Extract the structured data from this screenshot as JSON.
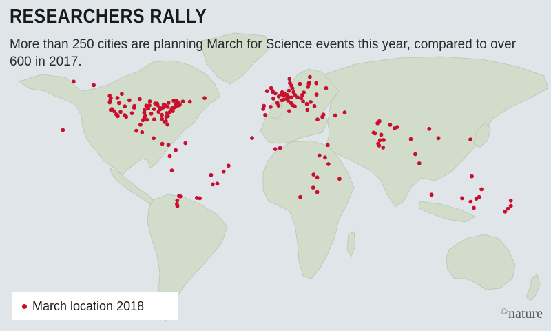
{
  "header": {
    "title": "RESEARCHERS RALLY",
    "subtitle": "More than 250 cities are planning March for Science events this year, compared to over 600 in 2017."
  },
  "legend": {
    "label": "March location 2018"
  },
  "credit": {
    "symbol": "©",
    "text": "nature"
  },
  "colors": {
    "water": "#dfe5e8",
    "land": "#d2dccb",
    "border": "#b9c4b3",
    "marker": "#c8102e"
  },
  "markers": [
    [
      -122.4,
      37.8
    ],
    [
      -118.2,
      34.1
    ],
    [
      -117.2,
      32.7
    ],
    [
      -122.7,
      45.5
    ],
    [
      -122.3,
      47.6
    ],
    [
      -121.5,
      38.6
    ],
    [
      -119.8,
      36.7
    ],
    [
      -117.4,
      47.7
    ],
    [
      -123.1,
      44.0
    ],
    [
      -116.2,
      43.6
    ],
    [
      -112.1,
      33.5
    ],
    [
      -110.9,
      32.2
    ],
    [
      -106.6,
      35.1
    ],
    [
      -105.0,
      39.7
    ],
    [
      -111.9,
      40.8
    ],
    [
      -115.1,
      36.2
    ],
    [
      -104.8,
      41.1
    ],
    [
      -108.5,
      45.8
    ],
    [
      -96.8,
      32.8
    ],
    [
      -97.7,
      30.3
    ],
    [
      -95.4,
      29.8
    ],
    [
      -98.5,
      29.4
    ],
    [
      -90.1,
      30.0
    ],
    [
      -87.6,
      41.9
    ],
    [
      -93.3,
      44.9
    ],
    [
      -90.2,
      38.6
    ],
    [
      -94.6,
      39.1
    ],
    [
      -96.0,
      41.3
    ],
    [
      -86.8,
      36.2
    ],
    [
      -84.4,
      33.7
    ],
    [
      -80.2,
      25.8
    ],
    [
      -81.4,
      28.5
    ],
    [
      -82.5,
      27.9
    ],
    [
      -84.3,
      30.4
    ],
    [
      -80.8,
      35.2
    ],
    [
      -78.6,
      35.8
    ],
    [
      -77.0,
      38.9
    ],
    [
      -76.6,
      39.3
    ],
    [
      -75.2,
      39.9
    ],
    [
      -74.0,
      40.7
    ],
    [
      -71.1,
      42.4
    ],
    [
      -73.8,
      42.7
    ],
    [
      -72.9,
      41.3
    ],
    [
      -83.0,
      42.3
    ],
    [
      -81.7,
      41.5
    ],
    [
      -80.0,
      40.4
    ],
    [
      -84.5,
      39.1
    ],
    [
      -86.2,
      39.8
    ],
    [
      -83.0,
      40.0
    ],
    [
      -89.4,
      43.1
    ],
    [
      -87.9,
      43.0
    ],
    [
      -85.7,
      38.3
    ],
    [
      -92.3,
      34.7
    ],
    [
      -97.5,
      35.5
    ],
    [
      -97.3,
      37.7
    ],
    [
      -100.8,
      46.8
    ],
    [
      -93.6,
      41.6
    ],
    [
      -77.4,
      37.5
    ],
    [
      -79.9,
      32.8
    ],
    [
      -81.1,
      32.1
    ],
    [
      -76.3,
      36.9
    ],
    [
      -68.8,
      44.8
    ],
    [
      -72.6,
      44.3
    ],
    [
      -71.4,
      41.8
    ],
    [
      -79.4,
      43.7
    ],
    [
      -123.1,
      49.3
    ],
    [
      -114.1,
      51.0
    ],
    [
      -75.7,
      45.4
    ],
    [
      -73.6,
      45.5
    ],
    [
      -63.6,
      44.6
    ],
    [
      -52.7,
      47.6
    ],
    [
      -135.0,
      58.3
    ],
    [
      -149.9,
      61.2
    ],
    [
      -157.9,
      21.3
    ],
    [
      -99.1,
      19.4
    ],
    [
      -103.3,
      20.7
    ],
    [
      -100.3,
      25.7
    ],
    [
      -90.5,
      14.6
    ],
    [
      -84.1,
      9.9
    ],
    [
      -79.5,
      9.0
    ],
    [
      -74.1,
      4.7
    ],
    [
      -66.9,
      10.5
    ],
    [
      -78.5,
      -0.2
    ],
    [
      -77.0,
      -12.0
    ],
    [
      -70.7,
      -33.4
    ],
    [
      -71.6,
      -33.0
    ],
    [
      -73.0,
      -36.8
    ],
    [
      -73.2,
      -39.8
    ],
    [
      -72.9,
      -41.5
    ],
    [
      -43.2,
      -22.9
    ],
    [
      -46.6,
      -23.5
    ],
    [
      -47.9,
      -15.8
    ],
    [
      -34.9,
      -8.1
    ],
    [
      -38.5,
      -12.9
    ],
    [
      -58.4,
      -34.6
    ],
    [
      -56.2,
      -34.9
    ],
    [
      -0.1,
      51.5
    ],
    [
      -2.2,
      53.5
    ],
    [
      -3.2,
      55.9
    ],
    [
      -6.3,
      53.3
    ],
    [
      -1.9,
      52.5
    ],
    [
      2.4,
      48.9
    ],
    [
      4.8,
      45.8
    ],
    [
      1.4,
      43.6
    ],
    [
      -1.6,
      47.2
    ],
    [
      4.4,
      50.8
    ],
    [
      4.9,
      52.4
    ],
    [
      6.1,
      49.6
    ],
    [
      8.7,
      50.1
    ],
    [
      13.4,
      52.5
    ],
    [
      11.6,
      48.1
    ],
    [
      10.0,
      53.6
    ],
    [
      6.9,
      50.9
    ],
    [
      9.2,
      48.8
    ],
    [
      8.5,
      47.4
    ],
    [
      6.1,
      46.2
    ],
    [
      16.4,
      48.2
    ],
    [
      14.4,
      50.1
    ],
    [
      21.0,
      52.2
    ],
    [
      19.9,
      50.1
    ],
    [
      19.0,
      47.5
    ],
    [
      12.5,
      41.9
    ],
    [
      9.2,
      45.5
    ],
    [
      11.3,
      43.8
    ],
    [
      14.3,
      40.8
    ],
    [
      -3.7,
      40.4
    ],
    [
      2.2,
      41.4
    ],
    [
      -9.1,
      38.7
    ],
    [
      -8.6,
      41.2
    ],
    [
      23.7,
      37.9
    ],
    [
      28.9,
      41.0
    ],
    [
      26.1,
      44.4
    ],
    [
      23.3,
      42.7
    ],
    [
      20.5,
      44.8
    ],
    [
      30.5,
      50.5
    ],
    [
      24.1,
      56.9
    ],
    [
      24.7,
      59.4
    ],
    [
      24.9,
      60.2
    ],
    [
      18.1,
      59.3
    ],
    [
      10.7,
      59.9
    ],
    [
      12.6,
      55.7
    ],
    [
      11.9,
      57.7
    ],
    [
      10.4,
      63.4
    ],
    [
      25.5,
      65.0
    ],
    [
      37.6,
      55.8
    ],
    [
      30.3,
      59.9
    ],
    [
      10.2,
      36.8
    ],
    [
      -7.6,
      33.6
    ],
    [
      31.2,
      30.0
    ],
    [
      34.8,
      32.1
    ],
    [
      35.5,
      33.9
    ],
    [
      44.4,
      33.3
    ],
    [
      51.4,
      35.7
    ],
    [
      3.4,
      6.5
    ],
    [
      -0.2,
      5.6
    ],
    [
      -17.4,
      14.7
    ],
    [
      36.8,
      -1.3
    ],
    [
      32.6,
      0.3
    ],
    [
      38.7,
      9.0
    ],
    [
      39.3,
      -6.8
    ],
    [
      28.3,
      -15.4
    ],
    [
      31.0,
      -17.8
    ],
    [
      28.0,
      -26.2
    ],
    [
      18.4,
      -33.9
    ],
    [
      31.0,
      -29.9
    ],
    [
      47.5,
      -18.9
    ],
    [
      72.9,
      19.1
    ],
    [
      77.2,
      28.6
    ],
    [
      77.6,
      12.9
    ],
    [
      80.3,
      13.1
    ],
    [
      78.5,
      17.4
    ],
    [
      73.9,
      18.5
    ],
    [
      88.4,
      22.6
    ],
    [
      85.1,
      25.6
    ],
    [
      75.8,
      26.9
    ],
    [
      76.3,
      10.0
    ],
    [
      76.9,
      8.5
    ],
    [
      79.9,
      6.9
    ],
    [
      90.4,
      23.8
    ],
    [
      100.5,
      13.8
    ],
    [
      103.8,
      1.4
    ],
    [
      106.8,
      -6.2
    ],
    [
      121.0,
      14.6
    ],
    [
      114.2,
      22.3
    ],
    [
      144.8,
      13.5
    ],
    [
      115.9,
      -32.0
    ],
    [
      138.6,
      -34.9
    ],
    [
      144.9,
      -37.8
    ],
    [
      151.2,
      -33.9
    ],
    [
      149.1,
      -35.3
    ],
    [
      153.0,
      -27.5
    ],
    [
      145.8,
      -16.9
    ],
    [
      147.3,
      -42.9
    ],
    [
      174.8,
      -36.8
    ],
    [
      174.8,
      -41.3
    ],
    [
      172.6,
      -43.5
    ],
    [
      170.5,
      -45.9
    ]
  ]
}
